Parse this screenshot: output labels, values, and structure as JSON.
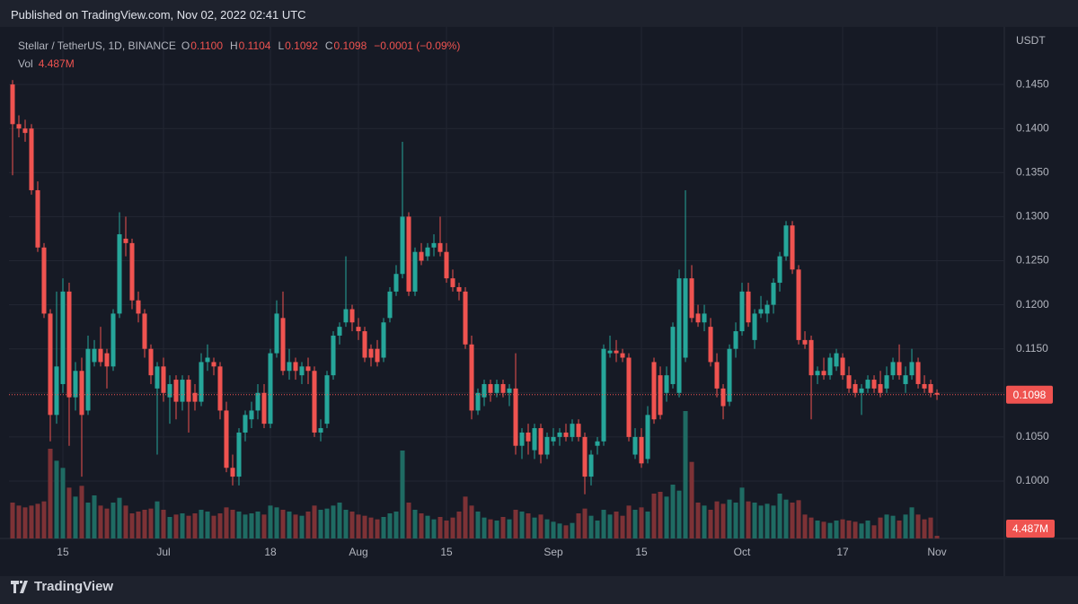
{
  "published": "Published on TradingView.com, Nov 02, 2022 02:41 UTC",
  "brand": "TradingView",
  "chart_data": {
    "type": "candlestick",
    "title": "Stellar / TetherUS, 1D, BINANCE",
    "ohlc_legend": [
      {
        "label": "O",
        "value": "0.1100"
      },
      {
        "label": "H",
        "value": "0.1104"
      },
      {
        "label": "L",
        "value": "0.1092"
      },
      {
        "label": "C",
        "value": "0.1098"
      }
    ],
    "change": "−0.0001 (−0.09%)",
    "volume_legend": "Vol",
    "volume_legend_value": "4.487M",
    "y_axis_label": "USDT",
    "last_price_label": "0.1098",
    "last_volume_label": "4.487M",
    "up_color": "#26a69a",
    "down_color": "#ef5350",
    "up_volume_color": "#1f6b63",
    "down_volume_color": "#7d3236",
    "grid": true,
    "x": [
      0,
      1,
      2,
      3,
      4,
      5,
      6,
      7,
      8,
      9,
      10,
      11,
      12,
      13,
      14,
      15,
      16,
      17,
      18,
      19,
      20,
      21,
      22,
      23,
      24,
      25,
      26,
      27,
      28,
      29,
      30,
      31,
      32,
      33,
      34,
      35,
      36,
      37,
      38,
      39,
      40,
      41,
      42,
      43,
      44,
      45,
      46,
      47,
      48,
      49,
      50,
      51,
      52,
      53,
      54,
      55,
      56,
      57,
      58,
      59,
      60,
      61,
      62,
      63,
      64,
      65,
      66,
      67,
      68,
      69,
      70,
      71,
      72,
      73,
      74,
      75,
      76,
      77,
      78,
      79,
      80,
      81,
      82,
      83,
      84,
      85,
      86,
      87,
      88,
      89,
      90,
      91,
      92,
      93,
      94,
      95,
      96,
      97,
      98,
      99,
      100,
      101,
      102,
      103,
      104,
      105,
      106,
      107,
      108,
      109,
      110,
      111,
      112,
      113,
      114,
      115,
      116,
      117,
      118,
      119,
      120,
      121,
      122,
      123,
      124,
      125,
      126,
      127,
      128,
      129,
      130,
      131,
      132,
      133,
      134,
      135,
      136,
      137,
      138,
      139,
      140,
      141,
      142,
      143,
      144,
      145,
      146,
      147
    ],
    "open": [
      0.145,
      0.1405,
      0.14,
      0.14,
      0.133,
      0.1265,
      0.119,
      0.1075,
      0.111,
      0.1215,
      0.1095,
      0.1125,
      0.108,
      0.1135,
      0.115,
      0.1145,
      0.113,
      0.119,
      0.1275,
      0.127,
      0.1205,
      0.119,
      0.115,
      0.1105,
      0.113,
      0.1095,
      0.1115,
      0.109,
      0.1115,
      0.11,
      0.109,
      0.1135,
      0.1135,
      0.113,
      0.108,
      0.1015,
      0.1005,
      0.1055,
      0.107,
      0.108,
      0.11,
      0.1065,
      0.1145,
      0.1185,
      0.1125,
      0.1135,
      0.112,
      0.113,
      0.1125,
      0.1055,
      0.1065,
      0.112,
      0.1165,
      0.118,
      0.1195,
      0.1175,
      0.117,
      0.115,
      0.115,
      0.114,
      0.1185,
      0.1215,
      0.1235,
      0.13,
      0.1215,
      0.126,
      0.1255,
      0.1265,
      0.127,
      0.126,
      0.123,
      0.122,
      0.1215,
      0.1155,
      0.108,
      0.1095,
      0.111,
      0.11,
      0.111,
      0.11,
      0.1105,
      0.104,
      0.1055,
      0.1035,
      0.106,
      0.103,
      0.1045,
      0.105,
      0.1055,
      0.105,
      0.1065,
      0.105,
      0.1005,
      0.104,
      0.1045,
      0.1145,
      0.1148,
      0.1145,
      0.114,
      0.103,
      0.105,
      0.1025,
      0.1135,
      0.112,
      0.11,
      0.111,
      0.11,
      0.114,
      0.123,
      0.119,
      0.118,
      0.1175,
      0.1135,
      0.1105,
      0.109,
      0.115,
      0.117,
      0.1215,
      0.116,
      0.119,
      0.119,
      0.12,
      0.1225,
      0.1255,
      0.129,
      0.124,
      0.116,
      0.116,
      0.112,
      0.1125,
      0.112,
      0.113,
      0.114,
      0.112,
      0.111,
      0.11,
      0.1105,
      0.1115,
      0.111,
      0.1105,
      0.112,
      0.1135,
      0.111,
      0.112,
      0.1135,
      0.111,
      0.111,
      0.11
    ],
    "high": [
      0.1455,
      0.1415,
      0.141,
      0.1405,
      0.134,
      0.127,
      0.1195,
      0.1215,
      0.123,
      0.1225,
      0.1135,
      0.114,
      0.1165,
      0.116,
      0.1175,
      0.115,
      0.1195,
      0.1305,
      0.13,
      0.1275,
      0.1215,
      0.1195,
      0.1155,
      0.1135,
      0.114,
      0.112,
      0.112,
      0.112,
      0.112,
      0.111,
      0.1145,
      0.1155,
      0.114,
      0.1135,
      0.109,
      0.103,
      0.106,
      0.108,
      0.109,
      0.111,
      0.111,
      0.115,
      0.1205,
      0.1215,
      0.115,
      0.114,
      0.1135,
      0.114,
      0.113,
      0.107,
      0.1125,
      0.117,
      0.118,
      0.1255,
      0.12,
      0.1185,
      0.1175,
      0.1155,
      0.116,
      0.1185,
      0.122,
      0.1245,
      0.1385,
      0.1305,
      0.1265,
      0.127,
      0.127,
      0.128,
      0.13,
      0.127,
      0.124,
      0.1225,
      0.122,
      0.1165,
      0.1105,
      0.1115,
      0.1115,
      0.1115,
      0.1115,
      0.111,
      0.1145,
      0.106,
      0.1065,
      0.1065,
      0.1065,
      0.1055,
      0.106,
      0.106,
      0.1065,
      0.107,
      0.107,
      0.1055,
      0.1035,
      0.105,
      0.1155,
      0.1165,
      0.116,
      0.115,
      0.1145,
      0.106,
      0.106,
      0.1085,
      0.114,
      0.113,
      0.113,
      0.118,
      0.124,
      0.133,
      0.1245,
      0.12,
      0.12,
      0.1185,
      0.1145,
      0.111,
      0.1155,
      0.118,
      0.1225,
      0.1225,
      0.1195,
      0.121,
      0.1205,
      0.123,
      0.126,
      0.1295,
      0.1295,
      0.1245,
      0.117,
      0.1165,
      0.113,
      0.114,
      0.1145,
      0.115,
      0.1145,
      0.113,
      0.1115,
      0.111,
      0.112,
      0.112,
      0.1125,
      0.113,
      0.114,
      0.1155,
      0.113,
      0.115,
      0.114,
      0.112,
      0.1115,
      0.1104
    ],
    "low": [
      0.1347,
      0.139,
      0.1385,
      0.1325,
      0.126,
      0.1185,
      0.1045,
      0.1065,
      0.11,
      0.104,
      0.108,
      0.1005,
      0.1075,
      0.113,
      0.113,
      0.1105,
      0.1125,
      0.1185,
      0.1255,
      0.1195,
      0.118,
      0.114,
      0.111,
      0.103,
      0.109,
      0.1065,
      0.107,
      0.108,
      0.1055,
      0.108,
      0.1085,
      0.1125,
      0.112,
      0.107,
      0.101,
      0.0995,
      0.0995,
      0.1045,
      0.106,
      0.107,
      0.106,
      0.106,
      0.114,
      0.112,
      0.1115,
      0.1115,
      0.111,
      0.111,
      0.105,
      0.1045,
      0.106,
      0.1115,
      0.1155,
      0.1175,
      0.117,
      0.116,
      0.1135,
      0.113,
      0.113,
      0.1135,
      0.118,
      0.121,
      0.123,
      0.121,
      0.121,
      0.1245,
      0.125,
      0.1255,
      0.1255,
      0.1225,
      0.1215,
      0.1205,
      0.115,
      0.107,
      0.1075,
      0.1085,
      0.109,
      0.1095,
      0.1095,
      0.1085,
      0.103,
      0.1025,
      0.103,
      0.1025,
      0.102,
      0.1025,
      0.104,
      0.104,
      0.1045,
      0.1045,
      0.1045,
      0.0985,
      0.0995,
      0.103,
      0.104,
      0.114,
      0.1135,
      0.1135,
      0.1045,
      0.1025,
      0.1015,
      0.102,
      0.1065,
      0.107,
      0.109,
      0.1105,
      0.1095,
      0.1135,
      0.118,
      0.1175,
      0.117,
      0.113,
      0.1095,
      0.107,
      0.1085,
      0.114,
      0.1165,
      0.1175,
      0.115,
      0.1185,
      0.118,
      0.119,
      0.1215,
      0.125,
      0.1235,
      0.1155,
      0.115,
      0.107,
      0.111,
      0.1115,
      0.1115,
      0.1125,
      0.1115,
      0.11,
      0.1095,
      0.1075,
      0.11,
      0.11,
      0.1095,
      0.11,
      0.1115,
      0.1115,
      0.11,
      0.1115,
      0.1105,
      0.11,
      0.1095,
      0.1092
    ],
    "close": [
      0.1405,
      0.14,
      0.1395,
      0.133,
      0.1265,
      0.119,
      0.1075,
      0.113,
      0.1215,
      0.1095,
      0.1125,
      0.1075,
      0.115,
      0.115,
      0.1135,
      0.113,
      0.119,
      0.128,
      0.127,
      0.1205,
      0.119,
      0.115,
      0.112,
      0.113,
      0.11,
      0.111,
      0.109,
      0.1115,
      0.109,
      0.109,
      0.1135,
      0.114,
      0.113,
      0.108,
      0.1015,
      0.1005,
      0.1055,
      0.1075,
      0.108,
      0.11,
      0.1065,
      0.1145,
      0.119,
      0.1125,
      0.1135,
      0.1125,
      0.113,
      0.1125,
      0.1055,
      0.106,
      0.112,
      0.1165,
      0.1175,
      0.1195,
      0.118,
      0.117,
      0.114,
      0.114,
      0.1135,
      0.118,
      0.1215,
      0.1235,
      0.13,
      0.1215,
      0.126,
      0.125,
      0.1265,
      0.127,
      0.126,
      0.123,
      0.122,
      0.1215,
      0.1155,
      0.108,
      0.11,
      0.111,
      0.11,
      0.111,
      0.11,
      0.1105,
      0.104,
      0.1055,
      0.1045,
      0.106,
      0.103,
      0.105,
      0.105,
      0.1055,
      0.105,
      0.1065,
      0.105,
      0.1005,
      0.103,
      0.1045,
      0.115,
      0.1148,
      0.1145,
      0.114,
      0.105,
      0.105,
      0.102,
      0.1075,
      0.107,
      0.1075,
      0.112,
      0.1175,
      0.123,
      0.123,
      0.1185,
      0.118,
      0.119,
      0.1135,
      0.1105,
      0.1085,
      0.115,
      0.117,
      0.1215,
      0.118,
      0.119,
      0.1195,
      0.12,
      0.1225,
      0.1255,
      0.129,
      0.124,
      0.116,
      0.1155,
      0.112,
      0.1125,
      0.112,
      0.114,
      0.1145,
      0.112,
      0.1105,
      0.11,
      0.1105,
      0.1115,
      0.1105,
      0.11,
      0.112,
      0.1135,
      0.112,
      0.112,
      0.1135,
      0.111,
      0.1105,
      0.11,
      0.1098
    ],
    "volume": [
      60,
      55,
      52,
      55,
      58,
      62,
      150,
      130,
      118,
      85,
      70,
      88,
      60,
      72,
      55,
      50,
      60,
      68,
      55,
      42,
      45,
      48,
      50,
      62,
      48,
      36,
      40,
      42,
      38,
      42,
      48,
      45,
      38,
      42,
      52,
      48,
      45,
      40,
      42,
      45,
      40,
      55,
      52,
      48,
      45,
      40,
      38,
      45,
      55,
      48,
      50,
      55,
      60,
      48,
      45,
      40,
      38,
      35,
      32,
      36,
      42,
      45,
      147,
      60,
      48,
      42,
      38,
      32,
      36,
      30,
      35,
      45,
      70,
      55,
      45,
      35,
      32,
      30,
      36,
      32,
      48,
      45,
      42,
      35,
      40,
      32,
      28,
      25,
      22,
      26,
      42,
      50,
      38,
      30,
      48,
      40,
      45,
      38,
      55,
      48,
      52,
      45,
      75,
      78,
      70,
      90,
      80,
      213,
      128,
      60,
      55,
      48,
      62,
      58,
      65,
      60,
      85,
      62,
      60,
      55,
      58,
      55,
      75,
      65,
      60,
      64,
      40,
      35,
      30,
      28,
      26,
      30,
      32,
      30,
      28,
      25,
      30,
      22,
      35,
      40,
      38,
      30,
      40,
      52,
      40,
      32,
      35,
      4.487
    ],
    "xlim": [
      -0.57,
      157.71
    ],
    "xticks": [
      {
        "value": 8,
        "label": "15"
      },
      {
        "value": 24,
        "label": "Jul"
      },
      {
        "value": 41,
        "label": "18"
      },
      {
        "value": 55,
        "label": "Aug"
      },
      {
        "value": 69,
        "label": "15"
      },
      {
        "value": 86,
        "label": "Sep"
      },
      {
        "value": 100,
        "label": "15"
      },
      {
        "value": 116,
        "label": "Oct"
      },
      {
        "value": 132,
        "label": "17"
      },
      {
        "value": 147,
        "label": "Nov"
      }
    ],
    "ylim": [
      0.09348,
      0.15153
    ],
    "yticks": [
      {
        "value": 0.1,
        "label": "0.1000"
      },
      {
        "value": 0.105,
        "label": "0.1050"
      },
      {
        "value": 0.11,
        "label": "0.1100"
      },
      {
        "value": 0.115,
        "label": "0.1150"
      },
      {
        "value": 0.12,
        "label": "0.1200"
      },
      {
        "value": 0.125,
        "label": "0.1250"
      },
      {
        "value": 0.13,
        "label": "0.1300"
      },
      {
        "value": 0.135,
        "label": "0.1350"
      },
      {
        "value": 0.14,
        "label": "0.1400"
      },
      {
        "value": 0.145,
        "label": "0.1450"
      }
    ],
    "y2lim": [
      0,
      855
    ]
  }
}
